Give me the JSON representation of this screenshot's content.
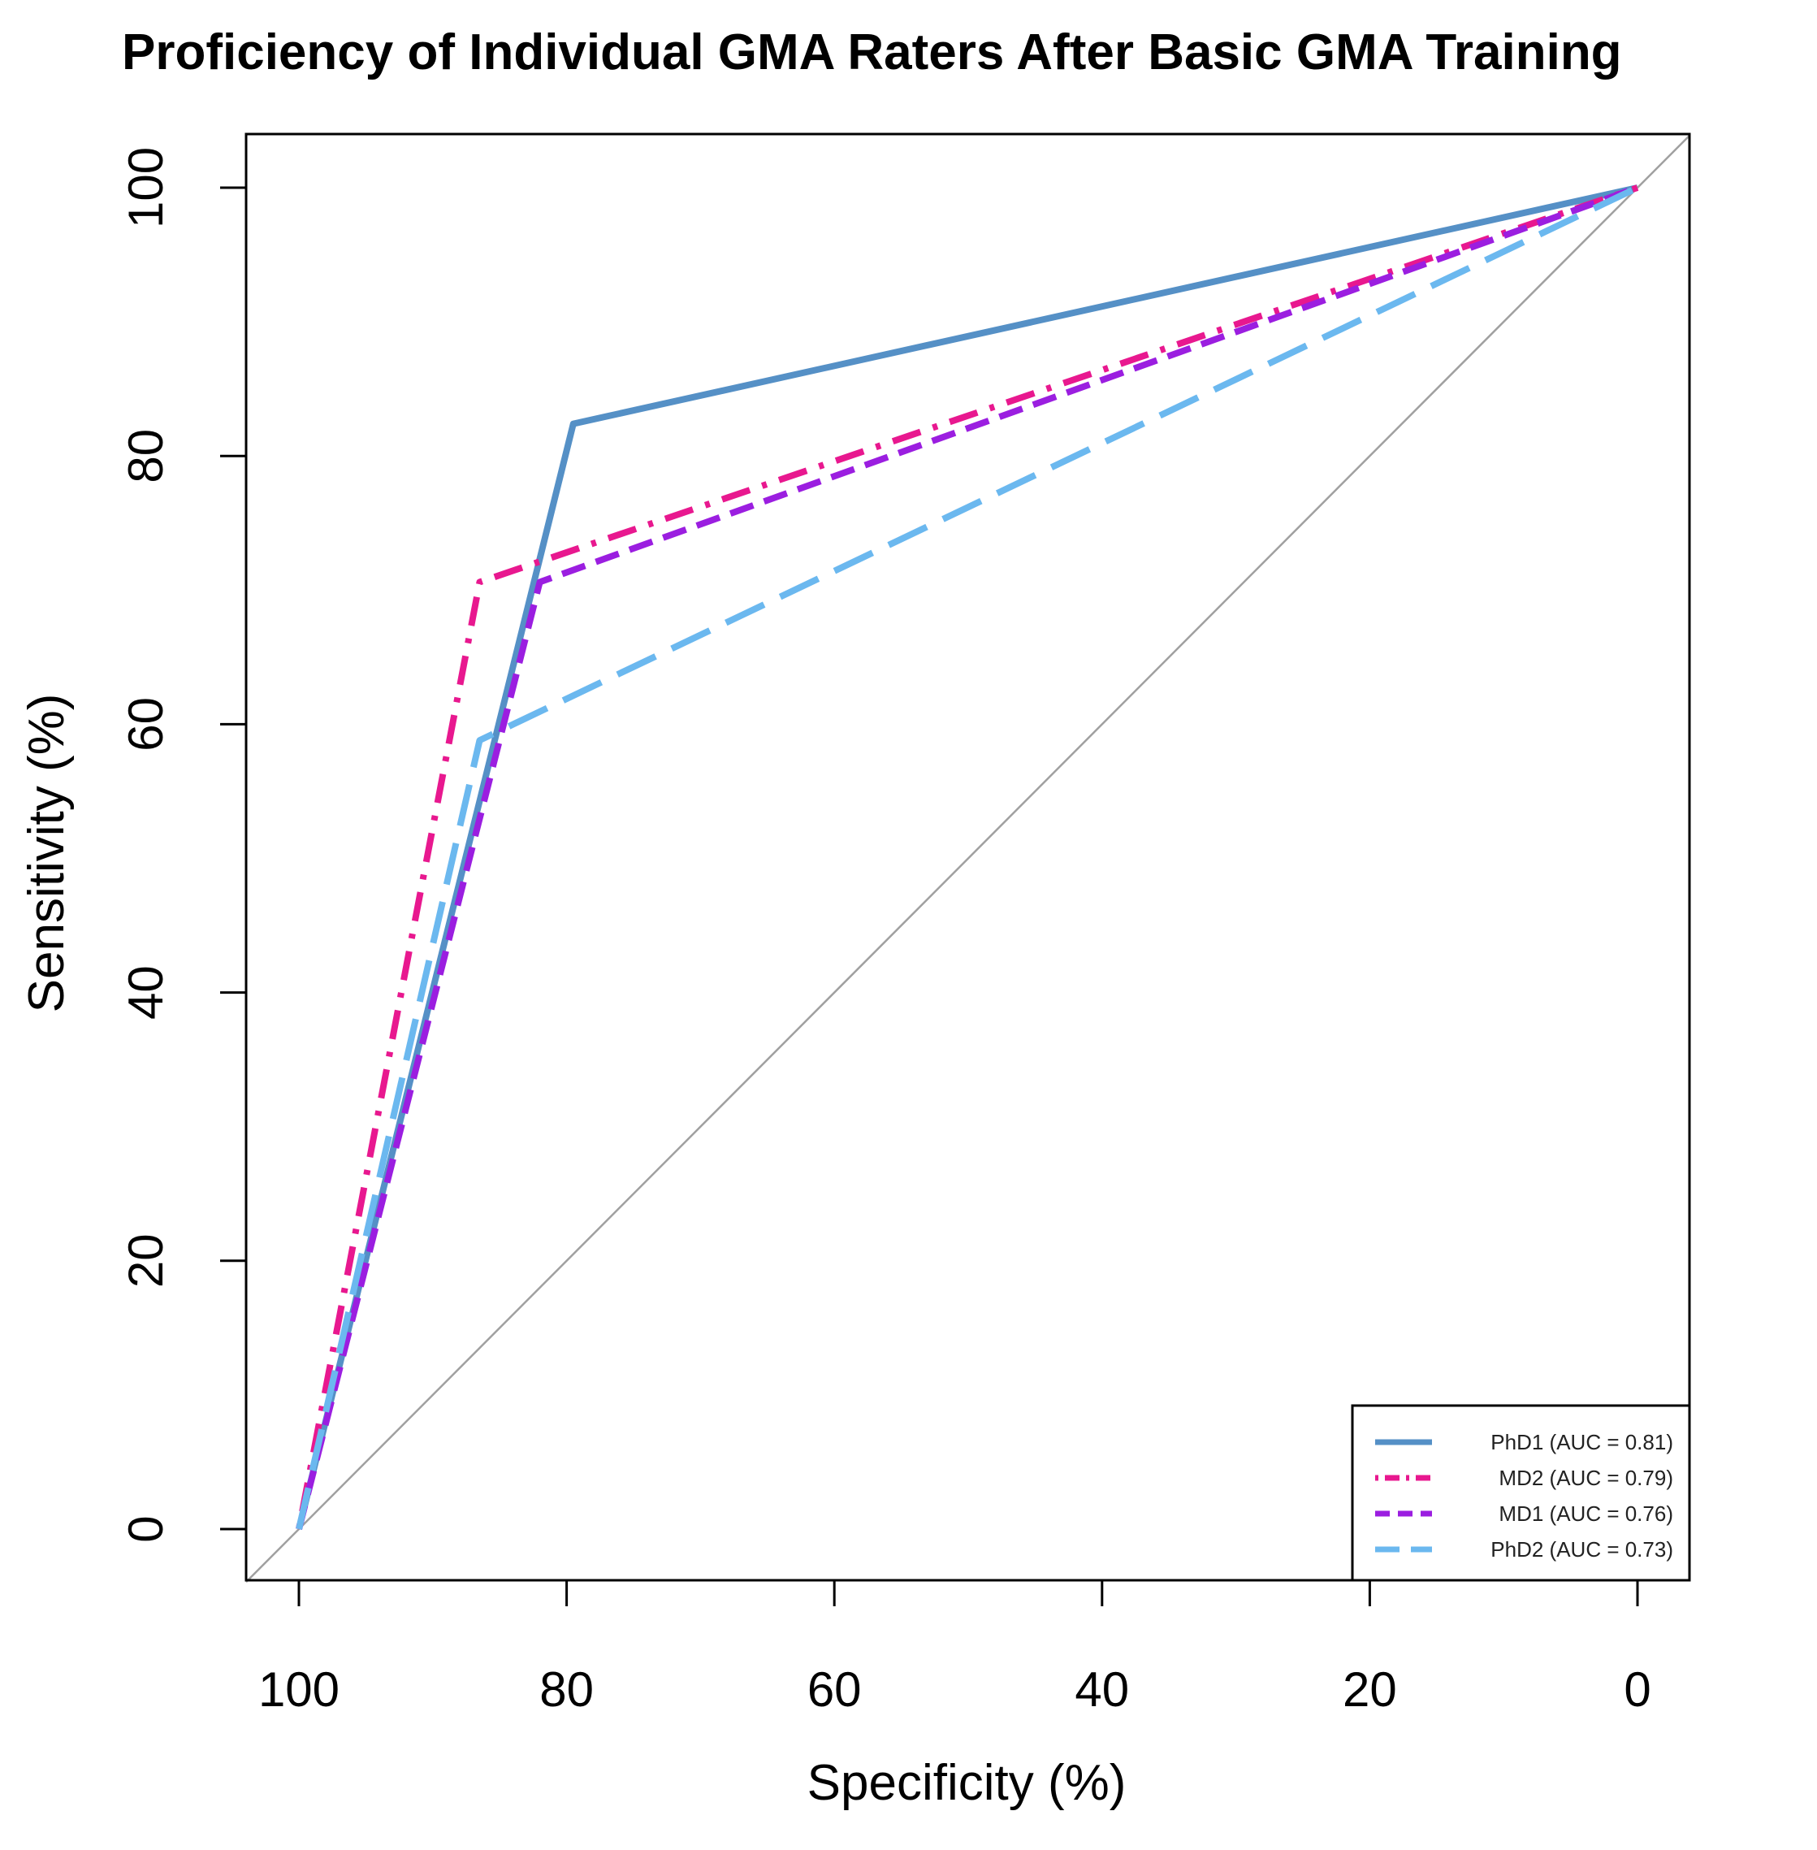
{
  "chart_data": {
    "type": "line",
    "title": "Proficiency of Individual GMA Raters After Basic GMA Training",
    "xlabel": "Specificity (%)",
    "ylabel": "Sensitivity (%)",
    "xlim": [
      100,
      0
    ],
    "ylim": [
      0,
      100
    ],
    "x_ticks": [
      "100",
      "80",
      "60",
      "40",
      "20",
      "0"
    ],
    "y_ticks": [
      "0",
      "20",
      "40",
      "60",
      "80",
      "100"
    ],
    "reference_line": {
      "name": "chance diagonal",
      "color": "#a0a0a0"
    },
    "legend_position": "bottom-right",
    "series": [
      {
        "name": "PhD1 (AUC = 0.81)",
        "color": "#5590c6",
        "dash": "solid",
        "x": [
          100,
          79.5,
          0
        ],
        "y": [
          0,
          82.4,
          100
        ]
      },
      {
        "name": "MD2 (AUC = 0.79)",
        "color": "#e8188f",
        "dash": "dotdash",
        "x": [
          100,
          86.5,
          0
        ],
        "y": [
          0,
          70.6,
          100
        ]
      },
      {
        "name": "MD1 (AUC = 0.76)",
        "color": "#9b1ee0",
        "dash": "dashed",
        "x": [
          100,
          82.0,
          0
        ],
        "y": [
          0,
          70.6,
          100
        ]
      },
      {
        "name": "PhD2 (AUC = 0.73)",
        "color": "#6bb8ef",
        "dash": "longdash",
        "x": [
          100,
          86.5,
          0
        ],
        "y": [
          0,
          58.8,
          100
        ]
      }
    ]
  }
}
